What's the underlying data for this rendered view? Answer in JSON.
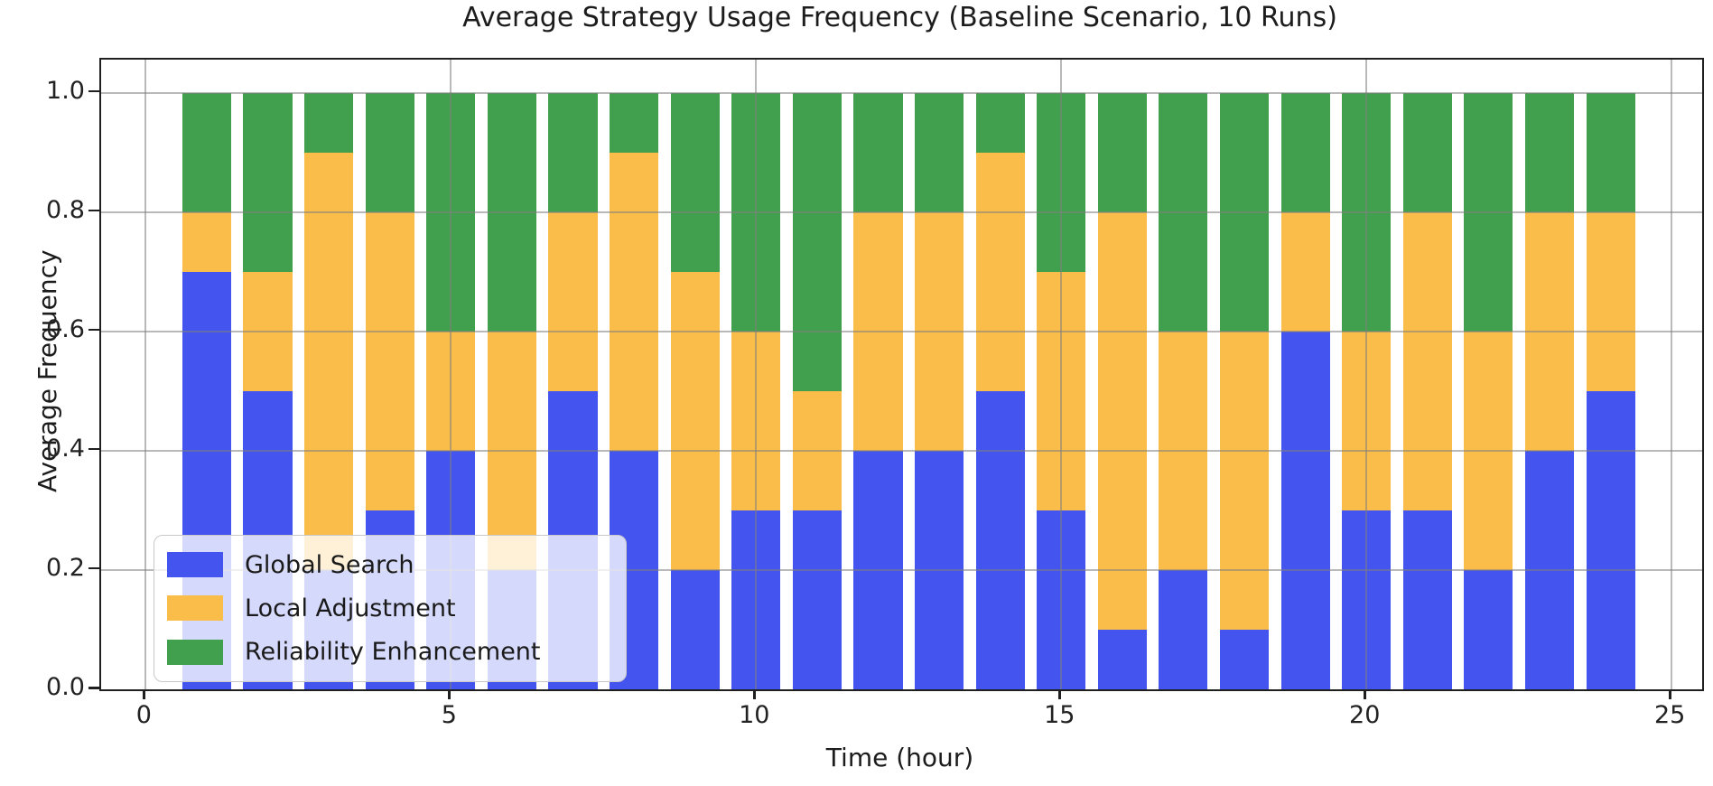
{
  "chart_data": {
    "type": "bar",
    "stacked": true,
    "title": "Average Strategy Usage Frequency (Baseline Scenario, 10 Runs)",
    "xlabel": "Time (hour)",
    "ylabel": "Average Frequency",
    "grid": true,
    "legend_position": "lower left",
    "background_color": "#ffffff",
    "grid_color": "#808080",
    "bar_width_data_units": 0.8,
    "xlim": [
      -0.73,
      25.5
    ],
    "ylim": [
      0,
      1.056
    ],
    "x_ticks": [
      {
        "label": "0",
        "value": 0
      },
      {
        "label": "5",
        "value": 5
      },
      {
        "label": "10",
        "value": 10
      },
      {
        "label": "15",
        "value": 15
      },
      {
        "label": "20",
        "value": 20
      },
      {
        "label": "25",
        "value": 25
      }
    ],
    "y_ticks": [
      {
        "label": "0.0",
        "value": 0.0
      },
      {
        "label": "0.2",
        "value": 0.2
      },
      {
        "label": "0.4",
        "value": 0.4
      },
      {
        "label": "0.6",
        "value": 0.6
      },
      {
        "label": "0.8",
        "value": 0.8
      },
      {
        "label": "1.0",
        "value": 1.0
      }
    ],
    "x": [
      1,
      2,
      3,
      4,
      5,
      6,
      7,
      8,
      9,
      10,
      11,
      12,
      13,
      14,
      15,
      16,
      17,
      18,
      19,
      20,
      21,
      22,
      23,
      24
    ],
    "series": [
      {
        "name": "Global Search",
        "color": "#4355EE",
        "values": [
          0.7,
          0.5,
          0.2,
          0.3,
          0.4,
          0.2,
          0.5,
          0.4,
          0.2,
          0.3,
          0.3,
          0.4,
          0.4,
          0.5,
          0.3,
          0.1,
          0.2,
          0.1,
          0.6,
          0.3,
          0.3,
          0.2,
          0.4,
          0.5
        ]
      },
      {
        "name": "Local Adjustment",
        "color": "#FABD4A",
        "values": [
          0.1,
          0.2,
          0.7,
          0.5,
          0.2,
          0.4,
          0.3,
          0.5,
          0.5,
          0.3,
          0.2,
          0.4,
          0.4,
          0.4,
          0.4,
          0.7,
          0.4,
          0.5,
          0.2,
          0.3,
          0.5,
          0.4,
          0.4,
          0.3
        ]
      },
      {
        "name": "Reliability Enhancement",
        "color": "#41A04D",
        "values": [
          0.2,
          0.3,
          0.1,
          0.2,
          0.4,
          0.4,
          0.2,
          0.1,
          0.3,
          0.4,
          0.5,
          0.2,
          0.2,
          0.1,
          0.3,
          0.2,
          0.4,
          0.4,
          0.2,
          0.4,
          0.2,
          0.4,
          0.2,
          0.2
        ]
      }
    ]
  }
}
